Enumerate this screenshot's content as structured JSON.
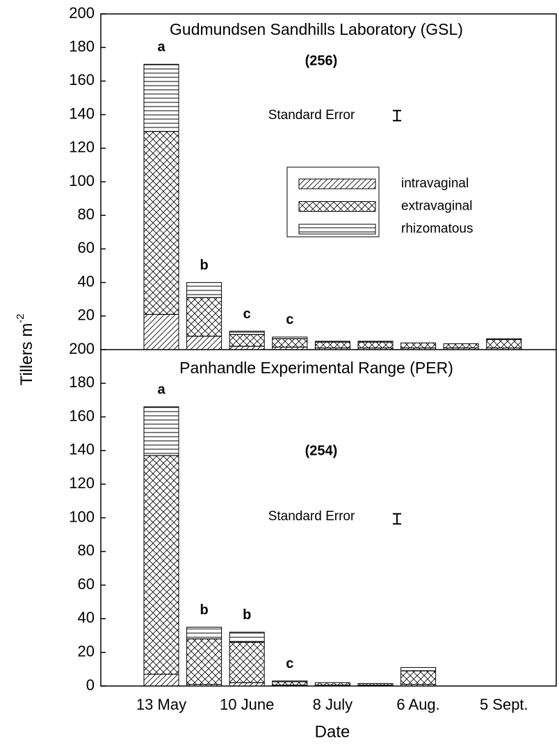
{
  "chart_data": [
    {
      "type": "stacked_bar",
      "title": "Gudmundsen Sandhills Laboratory (GSL)",
      "ylabel": "Tillers m",
      "ylabel_superscript": "-2",
      "annotations": [
        "(256)",
        "Standard Error"
      ],
      "standard_error": 6,
      "ylim": [
        0,
        200
      ],
      "yticks": [
        20,
        40,
        60,
        80,
        100,
        120,
        140,
        160,
        180,
        200
      ],
      "categories": [
        null,
        null,
        null,
        null,
        null,
        null,
        null,
        null,
        null
      ],
      "letters": [
        "a",
        "b",
        "c",
        "c",
        null,
        null,
        null,
        null,
        null
      ],
      "series": [
        {
          "name": "intravaginal",
          "color": "#000000",
          "pattern": "diagonal",
          "values": [
            21,
            8,
            2,
            1.5,
            1,
            1,
            1,
            1,
            1
          ]
        },
        {
          "name": "extravaginal",
          "color": "#000000",
          "pattern": "crosshatch",
          "values": [
            109,
            23,
            7,
            5,
            3.5,
            3.5,
            3,
            2.5,
            5
          ]
        },
        {
          "name": "rhizomatous",
          "color": "#000000",
          "pattern": "horizontal",
          "values": [
            40,
            9,
            2,
            1,
            0.5,
            0.5,
            0,
            0,
            0.5
          ]
        }
      ]
    },
    {
      "type": "stacked_bar",
      "title": "Panhandle Experimental Range (PER)",
      "xlabel": "Date",
      "annotations": [
        "(254)",
        "Standard Error"
      ],
      "standard_error": 6,
      "ylim": [
        0,
        200
      ],
      "yticks": [
        0,
        20,
        40,
        60,
        80,
        100,
        120,
        140,
        160,
        180,
        200
      ],
      "categories": [
        "13 May",
        null,
        "10 June",
        null,
        "8 July",
        null,
        "6 Aug.",
        null,
        "5 Sept."
      ],
      "letters": [
        "a",
        "b",
        "b",
        "c",
        null,
        null,
        null,
        null,
        null
      ],
      "series": [
        {
          "color": "#000000",
          "pattern": "diagonal",
          "values": [
            7,
            1,
            2,
            0.5,
            0.5,
            0.5,
            1,
            0,
            0
          ]
        },
        {
          "color": "#000000",
          "pattern": "crosshatch",
          "values": [
            130,
            27,
            24,
            2,
            1.5,
            1,
            8,
            0,
            0
          ]
        },
        {
          "color": "#000000",
          "pattern": "horizontal",
          "values": [
            29,
            7,
            6,
            0.5,
            0,
            0,
            2,
            0,
            0
          ]
        }
      ]
    }
  ]
}
